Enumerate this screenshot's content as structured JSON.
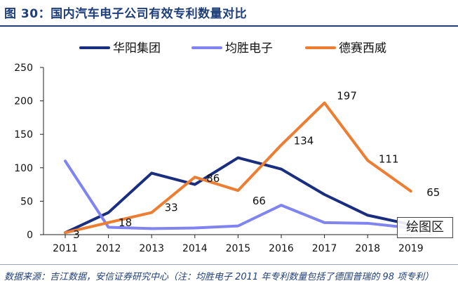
{
  "title": "图 30：国内汽车电子公司有效专利数量对比",
  "source": "数据来源：吉江数据，安信证券研究中心（注：均胜电子 2011 年专利数量包括了德国普瑞的 98 项专利）",
  "watermark": "绘图区",
  "chart_data": {
    "type": "line",
    "title": "国内汽车电子公司有效专利数量对比",
    "xlabel": "",
    "ylabel": "",
    "x": [
      "2011",
      "2012",
      "2013",
      "2014",
      "2015",
      "2016",
      "2017",
      "2018",
      "2019"
    ],
    "ylim": [
      0,
      250
    ],
    "yticks": [
      0,
      50,
      100,
      150,
      200,
      250
    ],
    "legend_position": "top",
    "grid": false,
    "series": [
      {
        "name": "华阳集团",
        "color": "#1a2e80",
        "values": [
          3,
          33,
          92,
          75,
          115,
          98,
          60,
          29,
          15
        ]
      },
      {
        "name": "均胜电子",
        "color": "#7f84f0",
        "values": [
          110,
          11,
          9,
          10,
          13,
          44,
          18,
          17,
          10
        ]
      },
      {
        "name": "德赛西威",
        "color": "#ed7d31",
        "values": [
          3,
          18,
          33,
          86,
          66,
          134,
          197,
          111,
          65
        ]
      }
    ],
    "annotations": [
      {
        "series": "德赛西威",
        "x": "2011",
        "label": "3"
      },
      {
        "series": "德赛西威",
        "x": "2012",
        "label": "18"
      },
      {
        "series": "德赛西威",
        "x": "2013",
        "label": "33"
      },
      {
        "series": "德赛西威",
        "x": "2014",
        "label": "86"
      },
      {
        "series": "德赛西威",
        "x": "2015",
        "label": "66"
      },
      {
        "series": "德赛西威",
        "x": "2016",
        "label": "134"
      },
      {
        "series": "德赛西威",
        "x": "2017",
        "label": "197"
      },
      {
        "series": "德赛西威",
        "x": "2018",
        "label": "111"
      },
      {
        "series": "德赛西威",
        "x": "2019",
        "label": "65"
      }
    ]
  }
}
